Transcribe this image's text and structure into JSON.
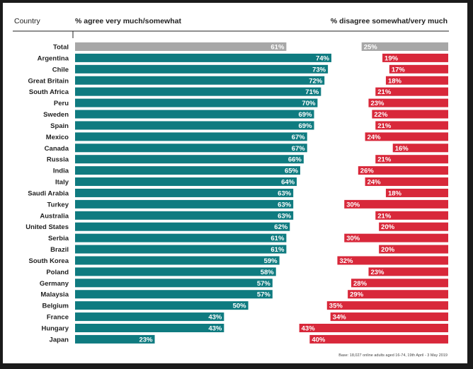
{
  "header": {
    "country_label": "Country",
    "agree_label": "% agree very much/somewhat",
    "disagree_label": "% disagree somewhat/very much"
  },
  "footnote": "Base: 18,027 online adults aged 16-74, 19th April - 3 May 2019",
  "colors": {
    "agree": "#0f7b80",
    "disagree": "#d8283a",
    "total": "#a7a7a7",
    "border": "#1b1b1b"
  },
  "chart_data": {
    "type": "bar",
    "categories": [
      "Total",
      "Argentina",
      "Chile",
      "Great Britain",
      "South Africa",
      "Peru",
      "Sweden",
      "Spain",
      "Mexico",
      "Canada",
      "Russia",
      "India",
      "Italy",
      "Saudi Arabia",
      "Turkey",
      "Australia",
      "United States",
      "Serbia",
      "Brazil",
      "South Korea",
      "Poland",
      "Germany",
      "Malaysia",
      "Belgium",
      "France",
      "Hungary",
      "Japan"
    ],
    "series": [
      {
        "name": "% agree very much/somewhat",
        "values": [
          61,
          74,
          73,
          72,
          71,
          70,
          69,
          69,
          67,
          67,
          66,
          65,
          64,
          63,
          63,
          63,
          62,
          61,
          61,
          59,
          58,
          57,
          57,
          50,
          43,
          43,
          23
        ]
      },
      {
        "name": "% disagree somewhat/very much",
        "values": [
          25,
          19,
          17,
          18,
          21,
          23,
          22,
          21,
          24,
          16,
          21,
          26,
          24,
          18,
          30,
          21,
          20,
          30,
          20,
          32,
          23,
          28,
          29,
          35,
          34,
          43,
          40
        ]
      }
    ],
    "value_labels_agree": [
      "61%",
      "74%",
      "73%",
      "72%",
      "71%",
      "70%",
      "69%",
      "69%",
      "67%",
      "67%",
      "66%",
      "65%",
      "64%",
      "63%",
      "63%",
      "63%",
      "62%",
      "61%",
      "61%",
      "59%",
      "58%",
      "57%",
      "57%",
      "50%",
      "43%",
      "43%",
      "23%"
    ],
    "value_labels_disagree": [
      "25%",
      "19%",
      "17%",
      "18%",
      "21%",
      "23%",
      "22%",
      "21%",
      "24%",
      "16%",
      "21%",
      "26%",
      "24%",
      "18%",
      "30%",
      "21%",
      "20%",
      "30%",
      "20%",
      "32%",
      "23%",
      "28%",
      "29%",
      "35%",
      "34%",
      "43%",
      "40%"
    ],
    "orientation": "horizontal",
    "layout": "diverging, agree bars from left, disagree bars from right",
    "xlim": [
      0,
      100
    ],
    "grid": false,
    "legend": "none (column headers)"
  }
}
